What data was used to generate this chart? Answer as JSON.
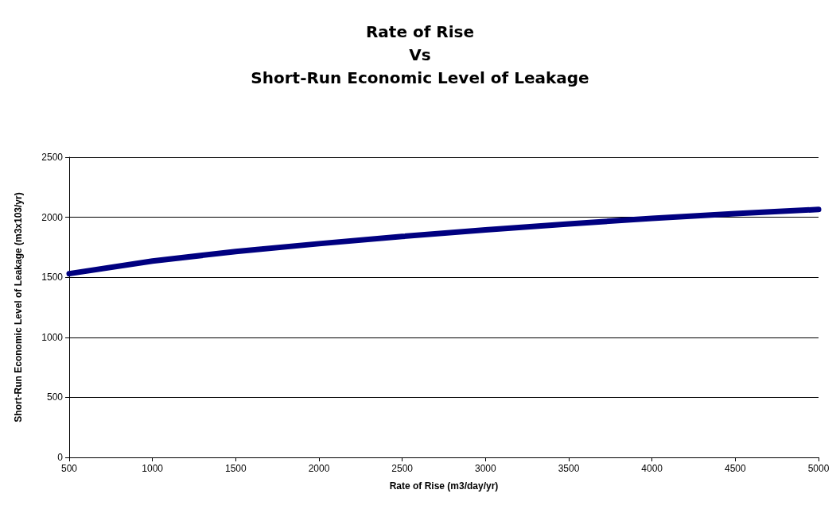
{
  "chart_data": {
    "type": "line",
    "title": "Rate of Rise\nVs\nShort-Run Economic Level of Leakage",
    "xlabel": "Rate of Rise (m3/day/yr)",
    "ylabel": "Short-Run Economic Level of Leakage (m3x103/yr)",
    "x": [
      500,
      1000,
      1500,
      2000,
      2500,
      3000,
      3500,
      4000,
      4500,
      5000
    ],
    "series": [
      {
        "color": "#000080",
        "values": [
          1530,
          1635,
          1715,
          1780,
          1840,
          1895,
          1945,
          1990,
          2030,
          2065
        ]
      }
    ],
    "xlim": [
      500,
      5000
    ],
    "xticks": [
      500,
      1000,
      1500,
      2000,
      2500,
      3000,
      3500,
      4000,
      4500,
      5000
    ],
    "ylim": [
      0,
      2500
    ],
    "yticks": [
      0,
      500,
      1000,
      1500,
      2000,
      2500
    ],
    "grid": "y"
  }
}
